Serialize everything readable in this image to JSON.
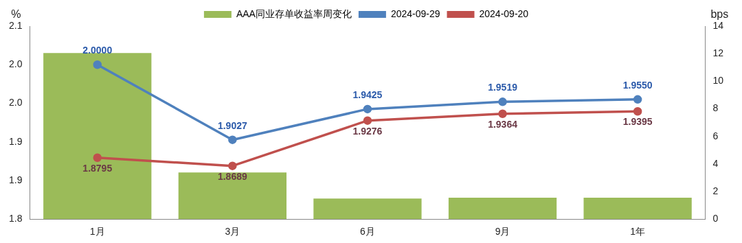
{
  "chart_data": {
    "type": "line",
    "categories": [
      "1月",
      "3月",
      "6月",
      "9月",
      "1年"
    ],
    "ylabel": "%",
    "y2label": "bps",
    "ylim": [
      1.8,
      2.05
    ],
    "yticks": [
      {
        "value": 1.8,
        "label": "1.8"
      },
      {
        "value": 1.85,
        "label": "1.9"
      },
      {
        "value": 1.9,
        "label": "1.9"
      },
      {
        "value": 1.95,
        "label": "2.0"
      },
      {
        "value": 2.0,
        "label": "2.0"
      },
      {
        "value": 2.05,
        "label": "2.1"
      }
    ],
    "y2lim": [
      0,
      14
    ],
    "y2ticks": [
      0,
      2,
      4,
      6,
      8,
      10,
      12,
      14
    ],
    "legend": "top",
    "marker": "circle",
    "grid": false,
    "series": [
      {
        "name": "AAA同业存单收益率周变化",
        "type": "bar",
        "axis": "y2",
        "color": "#9bbb59",
        "values": [
          12.05,
          3.38,
          1.49,
          1.55,
          1.55
        ]
      },
      {
        "name": "2024-09-29",
        "color": "#4f81bd",
        "values": [
          2.0,
          1.9027,
          1.9425,
          1.9519,
          1.955
        ],
        "value_labels": [
          "2.0000",
          "1.9027",
          "1.9425",
          "1.9519",
          "1.9550"
        ]
      },
      {
        "name": "2024-09-20",
        "color": "#c0504d",
        "values": [
          1.8795,
          1.8689,
          1.9276,
          1.9364,
          1.9395
        ],
        "value_labels": [
          "1.8795",
          "1.8689",
          "1.9276",
          "1.9364",
          "1.9395"
        ]
      }
    ]
  }
}
